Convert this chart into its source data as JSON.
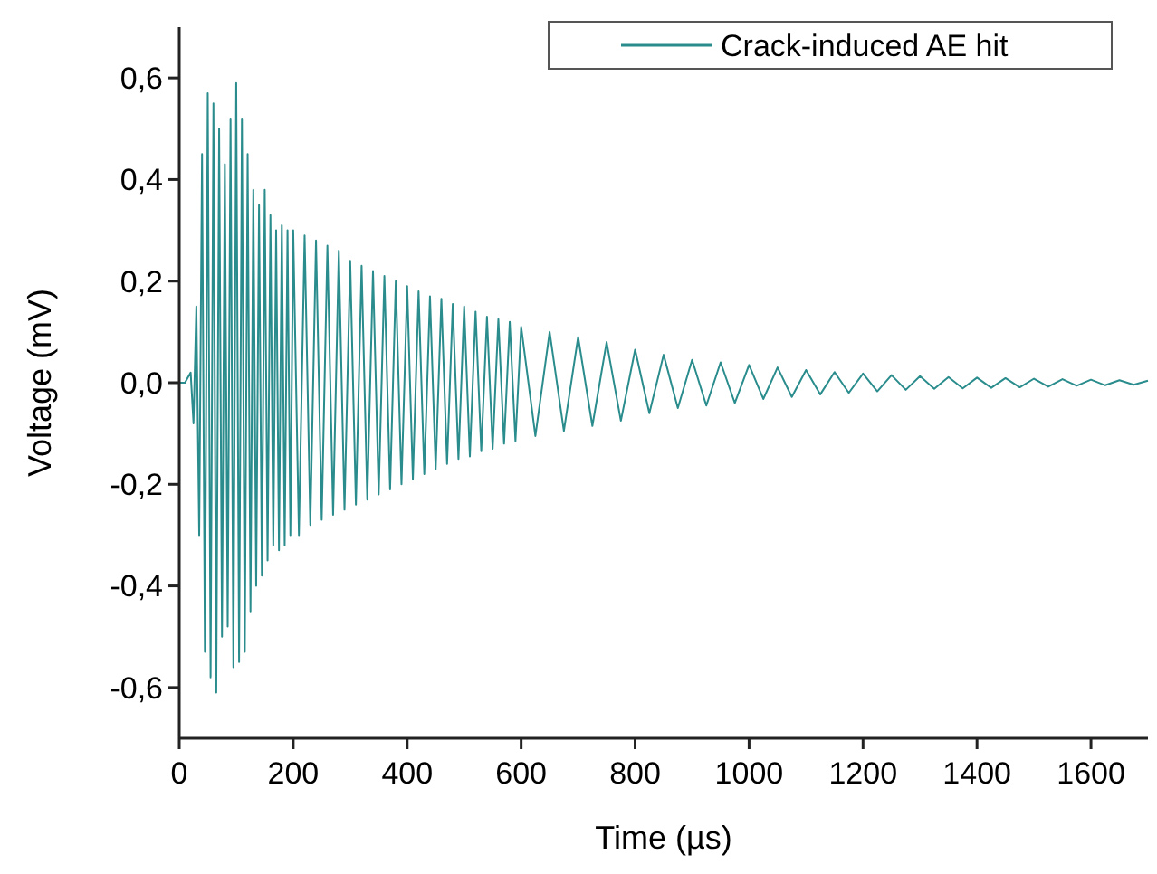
{
  "chart_data": {
    "type": "line",
    "xlabel": "Time (µs)",
    "ylabel": "Voltage (mV)",
    "xlim": [
      0,
      1700
    ],
    "xticks": [
      0,
      200,
      400,
      600,
      800,
      1000,
      1200,
      1400,
      1600
    ],
    "ylim": [
      -0.7,
      0.7
    ],
    "yticks": [
      {
        "value": -0.6,
        "label": "-0,6"
      },
      {
        "value": -0.4,
        "label": "-0,4"
      },
      {
        "value": -0.2,
        "label": "-0,2"
      },
      {
        "value": 0,
        "label": "0,0"
      },
      {
        "value": 0.2,
        "label": "0,2"
      },
      {
        "value": 0.4,
        "label": "0,4"
      },
      {
        "value": 0.6,
        "label": "0,6"
      }
    ],
    "grid": false,
    "legend": "top right",
    "marker": "none",
    "line_style": "solid",
    "series": [
      {
        "name": "Crack-induced AE hit",
        "color": "#2a8c8c",
        "x": [
          0,
          10,
          20,
          25,
          30,
          35,
          40,
          45,
          50,
          55,
          60,
          65,
          70,
          75,
          80,
          85,
          90,
          95,
          100,
          105,
          110,
          115,
          120,
          125,
          130,
          135,
          140,
          145,
          150,
          155,
          160,
          165,
          170,
          175,
          180,
          185,
          190,
          195,
          200,
          210,
          220,
          230,
          240,
          250,
          260,
          270,
          280,
          290,
          300,
          310,
          320,
          330,
          340,
          350,
          360,
          370,
          380,
          390,
          400,
          410,
          420,
          430,
          440,
          450,
          460,
          470,
          480,
          490,
          500,
          510,
          520,
          530,
          540,
          550,
          560,
          570,
          580,
          590,
          600,
          625,
          650,
          675,
          700,
          725,
          750,
          775,
          800,
          825,
          850,
          875,
          900,
          925,
          950,
          975,
          1000,
          1025,
          1050,
          1075,
          1100,
          1125,
          1150,
          1175,
          1200,
          1225,
          1250,
          1275,
          1300,
          1325,
          1350,
          1375,
          1400,
          1425,
          1450,
          1475,
          1500,
          1525,
          1550,
          1575,
          1600,
          1625,
          1650,
          1675,
          1700
        ],
        "values": [
          0,
          0,
          0.02,
          -0.08,
          0.15,
          -0.3,
          0.45,
          -0.53,
          0.57,
          -0.58,
          0.55,
          -0.61,
          0.5,
          -0.5,
          0.43,
          -0.48,
          0.52,
          -0.56,
          0.59,
          -0.55,
          0.52,
          -0.53,
          0.45,
          -0.45,
          0.38,
          -0.4,
          0.35,
          -0.38,
          0.38,
          -0.35,
          0.33,
          -0.32,
          0.3,
          -0.33,
          0.31,
          -0.32,
          0.3,
          -0.3,
          0.3,
          -0.3,
          0.29,
          -0.28,
          0.28,
          -0.27,
          0.27,
          -0.26,
          0.26,
          -0.25,
          0.24,
          -0.24,
          0.23,
          -0.23,
          0.22,
          -0.22,
          0.21,
          -0.21,
          0.2,
          -0.2,
          0.19,
          -0.19,
          0.18,
          -0.18,
          0.17,
          -0.17,
          0.165,
          -0.16,
          0.155,
          -0.15,
          0.15,
          -0.145,
          0.14,
          -0.135,
          0.13,
          -0.13,
          0.125,
          -0.12,
          0.12,
          -0.115,
          0.11,
          -0.105,
          0.1,
          -0.095,
          0.09,
          -0.085,
          0.08,
          -0.075,
          0.065,
          -0.06,
          0.055,
          -0.05,
          0.045,
          -0.045,
          0.04,
          -0.04,
          0.035,
          -0.032,
          0.03,
          -0.028,
          0.025,
          -0.023,
          0.021,
          -0.02,
          0.018,
          -0.017,
          0.015,
          -0.014,
          0.013,
          -0.012,
          0.011,
          -0.011,
          0.01,
          -0.01,
          0.009,
          -0.009,
          0.008,
          -0.008,
          0.007,
          -0.006,
          0.006,
          -0.005,
          0.005,
          -0.004,
          0.004
        ]
      }
    ]
  }
}
